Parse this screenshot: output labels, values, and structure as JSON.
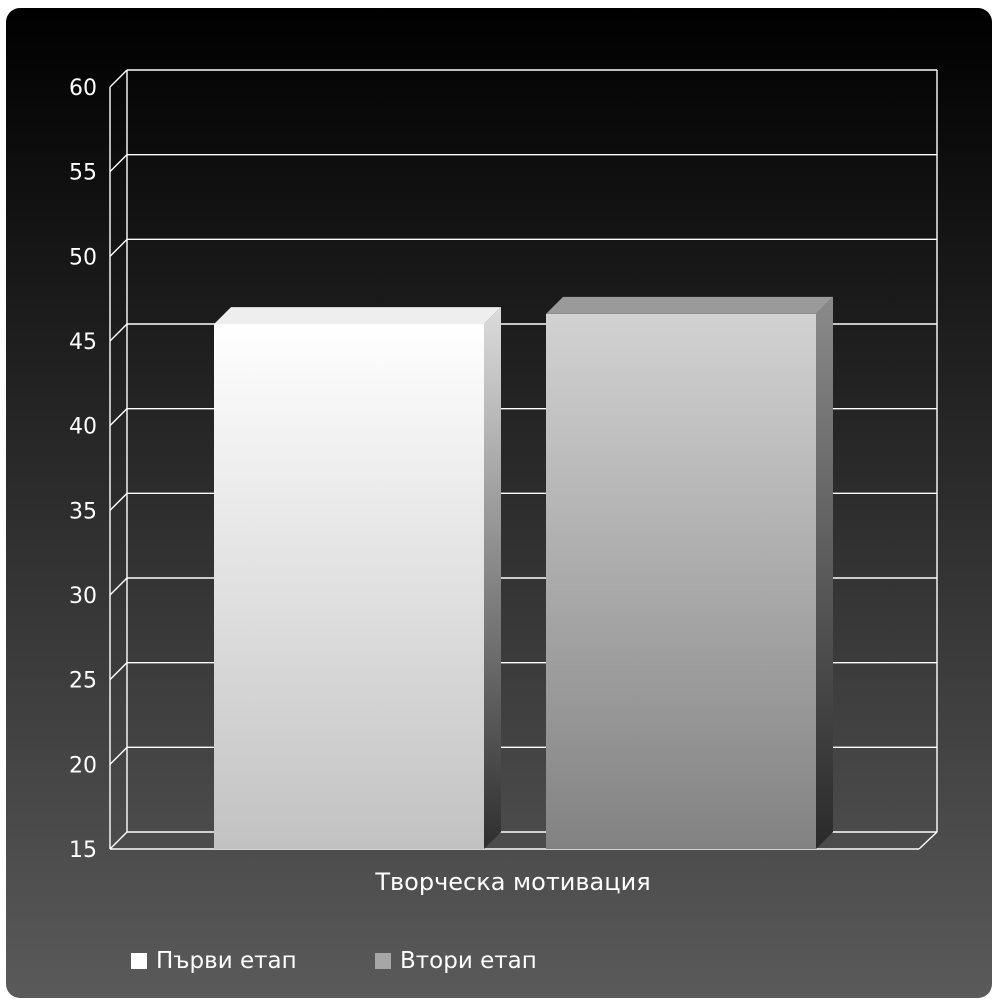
{
  "chart_data": {
    "type": "bar",
    "title": "",
    "xlabel": "",
    "ylabel": "",
    "categories": [
      "Творческа мотивация"
    ],
    "series": [
      {
        "name": "Първи етап",
        "values": [
          46.0
        ]
      },
      {
        "name": "Втори етап",
        "values": [
          46.6
        ]
      }
    ],
    "ylim": [
      15,
      60
    ],
    "y_ticks": [
      15,
      20,
      25,
      30,
      35,
      40,
      45,
      50,
      55,
      60
    ],
    "grid": true,
    "legend_position": "bottom-left",
    "colors": {
      "background_top": "#000000",
      "background_bottom": "#5a5a5a",
      "series_1": "#ffffff",
      "series_2": "#a6a6a6",
      "grid": "#ffffff",
      "text": "#ffffff"
    }
  }
}
